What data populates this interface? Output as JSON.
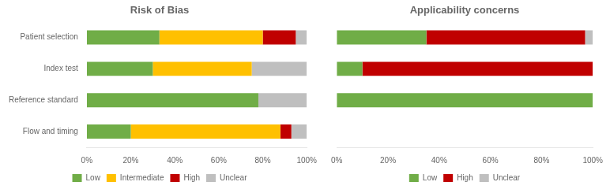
{
  "chart_data": [
    {
      "type": "bar",
      "orientation": "horizontal",
      "stacked": true,
      "title": "Risk of Bias",
      "categories": [
        "Patient selection",
        "Index test",
        "Reference standard",
        "Flow and timing"
      ],
      "series": [
        {
          "name": "Low",
          "color": "#70AD47",
          "values": [
            33,
            30,
            78,
            20
          ]
        },
        {
          "name": "Intermediate",
          "color": "#FFC000",
          "values": [
            47,
            45,
            0,
            68
          ]
        },
        {
          "name": "High",
          "color": "#C00000",
          "values": [
            15,
            0,
            0,
            5
          ]
        },
        {
          "name": "Unclear",
          "color": "#BFBFBF",
          "values": [
            5,
            25,
            22,
            7
          ]
        }
      ],
      "xlim": [
        0,
        100
      ],
      "xticks": [
        {
          "value": 0,
          "label": "0%"
        },
        {
          "value": 20,
          "label": "20%"
        },
        {
          "value": 40,
          "label": "40%"
        },
        {
          "value": 60,
          "label": "60%"
        },
        {
          "value": 80,
          "label": "80%"
        },
        {
          "value": 100,
          "label": "100%"
        }
      ],
      "grid": false,
      "legend": "bottom"
    },
    {
      "type": "bar",
      "orientation": "horizontal",
      "stacked": true,
      "title": "Applicability concerns",
      "categories": [
        "Patient selection",
        "Index test",
        "Reference standard",
        "Flow and timing"
      ],
      "series": [
        {
          "name": "Low",
          "color": "#70AD47",
          "values": [
            35,
            10,
            100,
            0
          ]
        },
        {
          "name": "High",
          "color": "#C00000",
          "values": [
            62,
            90,
            0,
            0
          ]
        },
        {
          "name": "Unclear",
          "color": "#BFBFBF",
          "values": [
            3,
            0,
            0,
            0
          ]
        }
      ],
      "xlim": [
        0,
        100
      ],
      "xticks": [
        {
          "value": 0,
          "label": "0%"
        },
        {
          "value": 20,
          "label": "20%"
        },
        {
          "value": 40,
          "label": "40%"
        },
        {
          "value": 60,
          "label": "60%"
        },
        {
          "value": 80,
          "label": "80%"
        },
        {
          "value": 100,
          "label": "100%"
        }
      ],
      "grid": false,
      "legend": "bottom",
      "tick_labels": "x"
    }
  ]
}
